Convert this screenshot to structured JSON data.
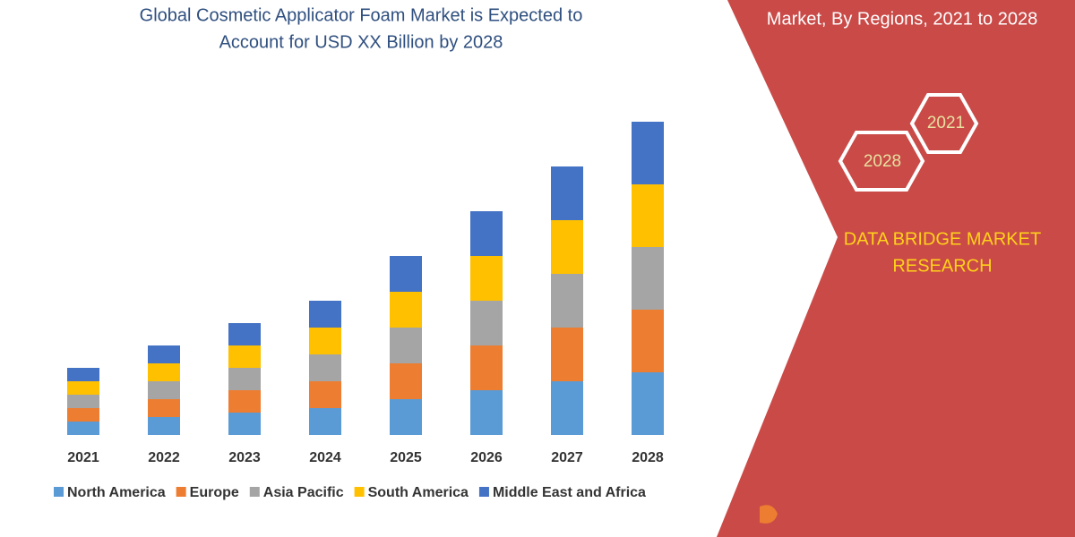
{
  "chart_data": {
    "type": "bar",
    "stacked": true,
    "title": [
      "Global Cosmetic Applicator Foam Market is Expected to",
      "Account for USD XX Billion by 2028"
    ],
    "categories": [
      "2021",
      "2022",
      "2023",
      "2024",
      "2025",
      "2026",
      "2027",
      "2028"
    ],
    "series": [
      {
        "name": "North America",
        "color": "#5b9bd5",
        "values": [
          15,
          20,
          25,
          30,
          40,
          50,
          60,
          70
        ]
      },
      {
        "name": "Europe",
        "color": "#ed7d31",
        "values": [
          15,
          20,
          25,
          30,
          40,
          50,
          60,
          70
        ]
      },
      {
        "name": "Asia Pacific",
        "color": "#a5a5a5",
        "values": [
          15,
          20,
          25,
          30,
          40,
          50,
          60,
          70
        ]
      },
      {
        "name": "South America",
        "color": "#ffc000",
        "values": [
          15,
          20,
          25,
          30,
          40,
          50,
          60,
          70
        ]
      },
      {
        "name": "Middle East and Africa",
        "color": "#4472c4",
        "values": [
          15,
          20,
          25,
          30,
          40,
          50,
          60,
          70
        ]
      }
    ]
  },
  "side_panel": {
    "heading": "Market, By Regions, 2021 to 2028",
    "hexagons": [
      "2021",
      "2028"
    ],
    "brand": [
      "DATA BRIDGE MARKET",
      "RESEARCH"
    ],
    "logo": "DATA BRIDGE"
  }
}
